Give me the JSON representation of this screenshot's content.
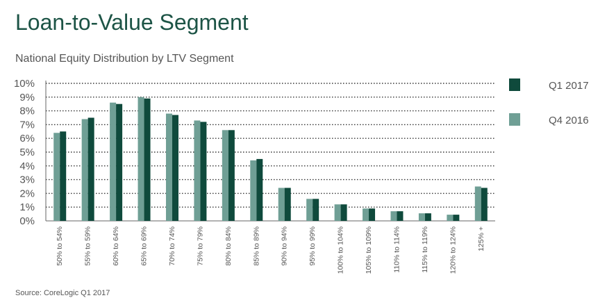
{
  "header": {
    "title": "Loan-to-Value Segment",
    "subtitle": "National Equity Distribution by LTV Segment",
    "source": "Source: CoreLogic Q1 2017"
  },
  "chart_data": {
    "type": "bar",
    "categories": [
      "50% to 54%",
      "55% to 59%",
      "60% to 64%",
      "65% to 69%",
      "70% to 74%",
      "75% to 79%",
      "80% to 84%",
      "85% to 89%",
      "90% to 94%",
      "95% to 99%",
      "100% to 104%",
      "105% to 109%",
      "110% to 114%",
      "115% to 119%",
      "120% to 124%",
      "125% +"
    ],
    "series": [
      {
        "name": "Q4 2016",
        "color": "#6f9f95",
        "values": [
          6.4,
          7.4,
          8.6,
          9.0,
          7.8,
          7.3,
          6.6,
          4.4,
          2.4,
          1.6,
          1.2,
          0.9,
          0.7,
          0.55,
          0.45,
          2.5
        ]
      },
      {
        "name": "Q1 2017",
        "color": "#0f4a3c",
        "values": [
          6.5,
          7.5,
          8.5,
          8.9,
          7.7,
          7.2,
          6.6,
          4.5,
          2.4,
          1.6,
          1.2,
          0.9,
          0.7,
          0.55,
          0.45,
          2.4
        ]
      }
    ],
    "ylim": [
      0,
      10
    ],
    "yticks": [
      "0%",
      "1%",
      "2%",
      "3%",
      "4%",
      "5%",
      "6%",
      "7%",
      "8%",
      "9%",
      "10%"
    ],
    "grid": true,
    "legend": {
      "placement": "right",
      "order": [
        "Q1 2017",
        "Q4 2016"
      ]
    }
  }
}
